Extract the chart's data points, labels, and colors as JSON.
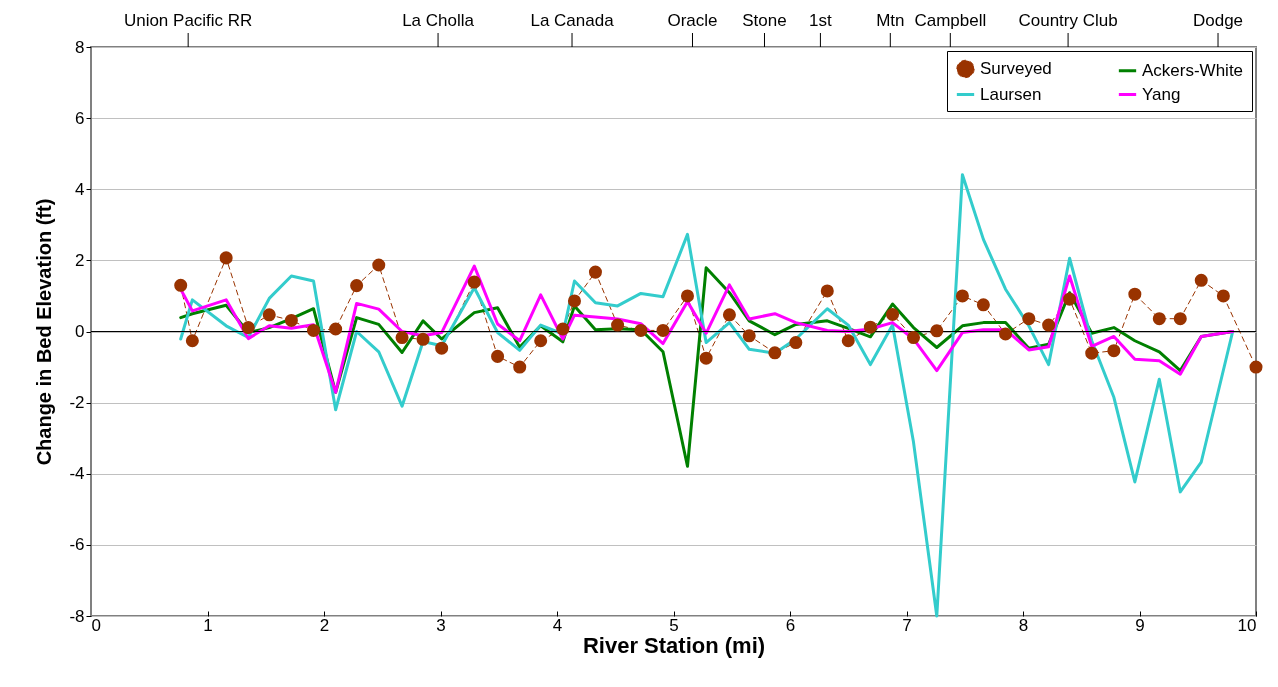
{
  "chart_data": {
    "type": "line",
    "xlabel": "River Station (mi)",
    "ylabel": "Change in Bed Elevation (ft)",
    "xlim": [
      0,
      10
    ],
    "xticks": [
      0,
      1,
      2,
      3,
      4,
      5,
      6,
      7,
      8,
      9,
      10
    ],
    "ylim": [
      -8,
      8
    ],
    "yticks": [
      -8,
      -6,
      -4,
      -2,
      0,
      2,
      4,
      6,
      8
    ],
    "annotations": [
      "Union Pacific RR",
      "La Cholla",
      "La Canada",
      "Oracle",
      "Stone",
      "1st",
      "Mtn",
      "Campbell",
      "Country Club",
      "Dodge"
    ],
    "grid": "y",
    "legend": "top right",
    "marker": "none",
    "line_style": "solid",
    "ref_lines": [
      {
        "axis": "y",
        "value": 0,
        "color": "#000000"
      }
    ],
    "x": [
      0.77,
      0.87,
      1.16,
      1.35,
      1.53,
      1.72,
      1.91,
      2.1,
      2.28,
      2.47,
      2.67,
      2.85,
      3.01,
      3.29,
      3.49,
      3.68,
      3.86,
      4.05,
      4.15,
      4.33,
      4.52,
      4.72,
      4.91,
      5.12,
      5.28,
      5.48,
      5.65,
      5.87,
      6.05,
      6.32,
      6.5,
      6.69,
      6.88,
      7.06,
      7.26,
      7.48,
      7.66,
      7.85,
      8.05,
      8.22,
      8.4,
      8.59,
      8.78,
      8.96,
      9.17,
      9.35,
      9.53,
      9.8
    ],
    "series": [
      {
        "name": "Surveyed",
        "color": "#993300",
        "marker": "circle",
        "line_style": "dashed",
        "x": [
          0.77,
          0.87,
          1.16,
          1.35,
          1.53,
          1.72,
          1.91,
          2.1,
          2.28,
          2.47,
          2.67,
          2.85,
          3.01,
          3.29,
          3.49,
          3.68,
          3.86,
          4.05,
          4.15,
          4.33,
          4.52,
          4.72,
          4.91,
          5.12,
          5.28,
          5.48,
          5.65,
          5.87,
          6.05,
          6.32,
          6.5,
          6.69,
          6.88,
          7.06,
          7.26,
          7.48,
          7.66,
          7.85,
          8.05,
          8.22,
          8.4,
          8.59,
          8.78,
          8.96,
          9.17,
          9.35,
          9.53,
          9.72,
          10.0
        ],
        "values": [
          1.3,
          -0.26,
          2.07,
          0.11,
          0.47,
          0.31,
          0.03,
          0.07,
          1.29,
          1.87,
          -0.17,
          -0.22,
          -0.47,
          1.39,
          -0.7,
          -1.0,
          -0.26,
          0.07,
          0.86,
          1.67,
          0.18,
          0.03,
          0.03,
          1.0,
          -0.75,
          0.47,
          -0.12,
          -0.6,
          -0.31,
          1.14,
          -0.26,
          0.12,
          0.48,
          -0.17,
          0.02,
          1.0,
          0.75,
          -0.07,
          0.36,
          0.18,
          0.91,
          -0.61,
          -0.54,
          1.05,
          0.36,
          0.36,
          1.44,
          1.0,
          -1.0
        ]
      },
      {
        "name": "Ackers-White",
        "color": "#008000",
        "values": [
          0.39,
          0.5,
          0.74,
          -0.03,
          0.11,
          0.36,
          0.64,
          -1.71,
          0.39,
          0.2,
          -0.59,
          0.3,
          -0.21,
          0.53,
          0.67,
          -0.44,
          0.16,
          -0.29,
          0.72,
          0.05,
          0.08,
          0.05,
          -0.57,
          -3.79,
          1.79,
          1.09,
          0.3,
          -0.09,
          0.2,
          0.3,
          0.09,
          -0.15,
          0.77,
          0.11,
          -0.45,
          0.16,
          0.25,
          0.25,
          -0.47,
          -0.36,
          1.09,
          -0.05,
          0.11,
          -0.26,
          -0.57,
          -1.1,
          -0.14,
          0.0
        ]
      },
      {
        "name": "Laursen",
        "color": "#33cccc",
        "values": [
          -0.21,
          0.89,
          0.16,
          -0.17,
          0.93,
          1.56,
          1.42,
          -2.2,
          0.0,
          -0.57,
          -2.1,
          -0.28,
          -0.4,
          1.23,
          -0.03,
          -0.53,
          0.18,
          -0.07,
          1.42,
          0.81,
          0.72,
          1.07,
          0.98,
          2.73,
          -0.31,
          0.25,
          -0.5,
          -0.61,
          -0.21,
          0.64,
          0.18,
          -0.93,
          0.18,
          -3.11,
          -8.0,
          4.41,
          2.59,
          1.19,
          0.16,
          -0.93,
          2.06,
          -0.26,
          -1.85,
          -4.23,
          -1.34,
          -4.51,
          -3.67,
          0.0
        ]
      },
      {
        "name": "Yang",
        "color": "#ff00ff",
        "values": [
          1.19,
          0.58,
          0.89,
          -0.2,
          0.16,
          0.09,
          0.19,
          -1.71,
          0.79,
          0.63,
          0.0,
          -0.12,
          -0.03,
          1.84,
          0.21,
          -0.26,
          1.03,
          -0.21,
          0.46,
          0.41,
          0.35,
          0.22,
          -0.34,
          0.84,
          -0.05,
          1.31,
          0.35,
          0.5,
          0.25,
          0.03,
          0.0,
          0.07,
          0.25,
          -0.21,
          -1.1,
          -0.03,
          0.05,
          0.05,
          -0.52,
          -0.43,
          1.56,
          -0.42,
          -0.14,
          -0.78,
          -0.82,
          -1.2,
          -0.14,
          0.0
        ]
      }
    ]
  }
}
